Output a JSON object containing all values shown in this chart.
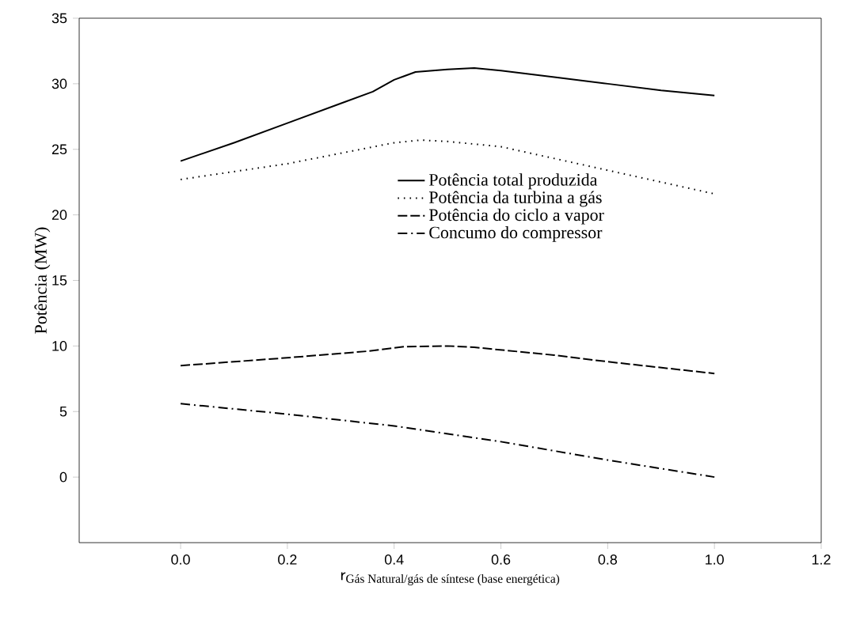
{
  "chart_data": {
    "type": "line",
    "xlabel": "\\mathsf{r}_{\\text{Gás Natural/gás de síntese (base energética)}}",
    "ylabel": "Potência (MW)",
    "xlim": [
      -0.19,
      1.2
    ],
    "ylim": [
      -5,
      35
    ],
    "xticks": [
      {
        "value": 0,
        "label": "0.0"
      },
      {
        "value": 0.2,
        "label": "0.2"
      },
      {
        "value": 0.4,
        "label": "0.4"
      },
      {
        "value": 0.6,
        "label": "0.6"
      },
      {
        "value": 0.8,
        "label": "0.8"
      },
      {
        "value": 1,
        "label": "1.0"
      },
      {
        "value": 1.2,
        "label": "1.2"
      }
    ],
    "yticks": [
      0,
      5,
      10,
      15,
      20,
      25,
      30,
      35
    ],
    "grid": false,
    "legend": "center",
    "marker": "none",
    "series": [
      {
        "name": "Potência total produzida",
        "color": "#000000",
        "line_style": "solid",
        "x": [
          0,
          0.1,
          0.2,
          0.3,
          0.36,
          0.4,
          0.44,
          0.5,
          0.55,
          0.6,
          0.7,
          0.8,
          0.9,
          1.0
        ],
        "values": [
          24.1,
          25.5,
          27.0,
          28.5,
          29.4,
          30.3,
          30.9,
          31.1,
          31.2,
          31.0,
          30.5,
          30.0,
          29.5,
          29.1
        ]
      },
      {
        "name": "Potência da turbina a gás",
        "color": "#000000",
        "line_style": "dotted",
        "x": [
          0,
          0.2,
          0.3,
          0.4,
          0.45,
          0.5,
          0.6,
          0.7,
          0.8,
          0.9,
          1.0
        ],
        "values": [
          22.7,
          23.9,
          24.7,
          25.5,
          25.7,
          25.6,
          25.2,
          24.3,
          23.4,
          22.5,
          21.6
        ]
      },
      {
        "name": "Potência do ciclo a vapor",
        "color": "#000000",
        "line_style": "dashed",
        "x": [
          0,
          0.2,
          0.35,
          0.42,
          0.5,
          0.55,
          0.7,
          0.8,
          1.0
        ],
        "values": [
          8.5,
          9.1,
          9.6,
          9.95,
          10.0,
          9.9,
          9.3,
          8.8,
          7.9
        ]
      },
      {
        "name": "Concumo do compressor",
        "color": "#000000",
        "line_style": "dashdot",
        "x": [
          0,
          0.2,
          0.4,
          0.6,
          0.8,
          1.0
        ],
        "values": [
          5.6,
          4.8,
          3.9,
          2.7,
          1.3,
          0.0
        ]
      }
    ]
  }
}
